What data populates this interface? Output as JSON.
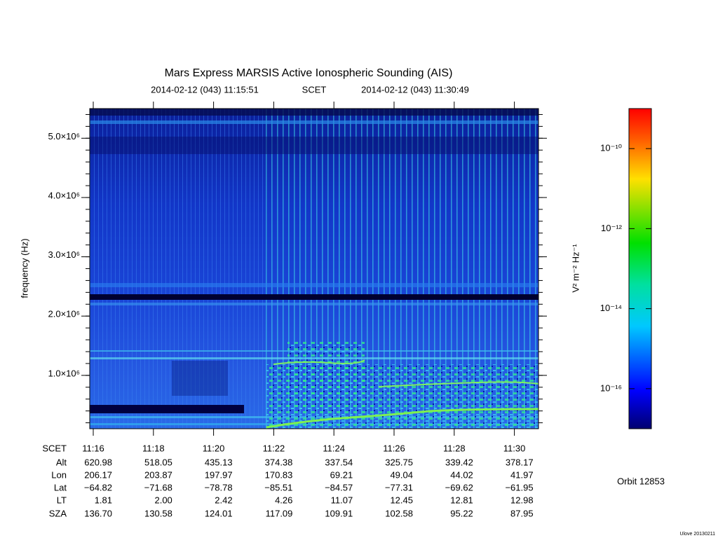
{
  "chart_data": {
    "type": "spectrogram",
    "title": "Mars Express MARSIS Active Ionospheric Sounding (AIS)",
    "time_start": "2014-02-12 (043) 11:15:51",
    "time_system": "SCET",
    "time_end": "2014-02-12 (043) 11:30:49",
    "ylabel": "frequency (Hz)",
    "ylim": [
      100000,
      5500000
    ],
    "yticks": [
      {
        "value": 1000000,
        "label": "1.0×10⁶"
      },
      {
        "value": 2000000,
        "label": "2.0×10⁶"
      },
      {
        "value": 3000000,
        "label": "3.0×10⁶"
      },
      {
        "value": 4000000,
        "label": "4.0×10⁶"
      },
      {
        "value": 5000000,
        "label": "5.0×10⁶"
      }
    ],
    "colorbar": {
      "label": "V² m⁻² Hz⁻¹",
      "log": true,
      "lim": [
        1e-17,
        1e-09
      ],
      "ticks": [
        {
          "value": 1e-10,
          "label": "10⁻¹⁰"
        },
        {
          "value": 1e-12,
          "label": "10⁻¹²"
        },
        {
          "value": 1e-14,
          "label": "10⁻¹⁴"
        },
        {
          "value": 1e-16,
          "label": "10⁻¹⁶"
        }
      ]
    },
    "ephemeris": [
      {
        "name": "SCET",
        "values": [
          "11:16",
          "11:18",
          "11:20",
          "11:22",
          "11:24",
          "11:26",
          "11:28",
          "11:30"
        ]
      },
      {
        "name": "Alt",
        "values": [
          "620.98",
          "518.05",
          "435.13",
          "374.38",
          "337.54",
          "325.75",
          "339.42",
          "378.17"
        ]
      },
      {
        "name": "Lon",
        "values": [
          "206.17",
          "203.87",
          "197.97",
          "170.83",
          "69.21",
          "49.04",
          "44.02",
          "41.97"
        ]
      },
      {
        "name": "Lat",
        "values": [
          "−64.82",
          "−71.68",
          "−78.78",
          "−85.51",
          "−84.57",
          "−77.31",
          "−69.62",
          "−61.95"
        ]
      },
      {
        "name": "LT",
        "values": [
          "1.81",
          "2.00",
          "2.42",
          "4.26",
          "11.07",
          "12.45",
          "12.81",
          "12.98"
        ]
      },
      {
        "name": "SZA",
        "values": [
          "136.70",
          "130.58",
          "124.01",
          "117.09",
          "109.91",
          "102.58",
          "95.22",
          "87.95"
        ]
      }
    ],
    "orbit": "Orbit 12853",
    "credit": "Ulove 20130211"
  }
}
